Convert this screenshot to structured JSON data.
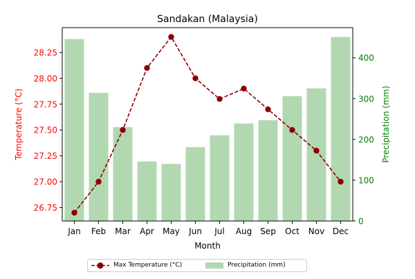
{
  "chart_data": {
    "type": "bar+line",
    "title": "Sandakan (Malaysia)",
    "xlabel": "Month",
    "categories": [
      "Jan",
      "Feb",
      "Mar",
      "Apr",
      "May",
      "Jun",
      "Jul",
      "Aug",
      "Sep",
      "Oct",
      "Nov",
      "Dec"
    ],
    "left_axis": {
      "label": "Temperature (°C)",
      "color": "#ff0000",
      "ylim": [
        26.62,
        28.49
      ],
      "ticks": [
        "26.75",
        "27.00",
        "27.25",
        "27.50",
        "27.75",
        "28.00",
        "28.25"
      ]
    },
    "right_axis": {
      "label": "Precipitation (mm)",
      "color": "#008000",
      "ylim": [
        0,
        474
      ],
      "ticks": [
        "0",
        "100",
        "200",
        "300",
        "400"
      ]
    },
    "series": [
      {
        "name": "Max Temperature (°C)",
        "type": "line",
        "axis": "left",
        "color": "#8b0000",
        "style": "dashed",
        "marker": "circle",
        "values": [
          26.7,
          27.0,
          27.5,
          28.1,
          28.4,
          28.0,
          27.8,
          27.9,
          27.7,
          27.5,
          27.3,
          27.0
        ]
      },
      {
        "name": "Precipitation (mm)",
        "type": "bar",
        "axis": "right",
        "color": "#b2d8b2",
        "values": [
          446,
          314,
          230,
          146,
          140,
          181,
          210,
          239,
          247,
          306,
          325,
          451
        ]
      }
    ],
    "legend": {
      "position": "bottom-center",
      "columns": 2
    },
    "grid": false
  }
}
